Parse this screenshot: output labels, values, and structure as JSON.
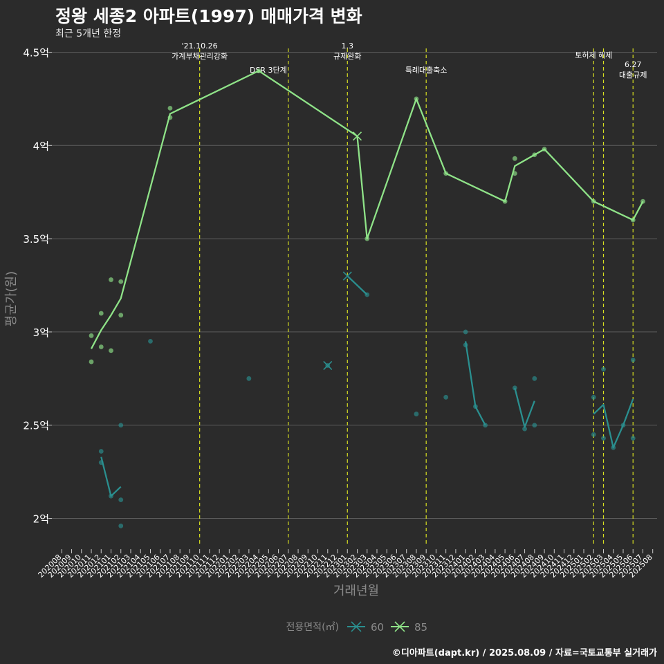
{
  "title": "정왕 세종2 아파트(1997) 매매가격 변화",
  "subtitle": "최근 5개년 한정",
  "caption": "©디아파트(dapt.kr) / 2025.08.09 / 자료=국토교통부 실거래가",
  "colors": {
    "background": "#2b2b2b",
    "grid": "#5c5c5c",
    "series_60": "#2a8f8f",
    "series_85": "#8fe388",
    "event_line": "#d8e020"
  },
  "chart_data": {
    "type": "line",
    "xlabel": "거래년월",
    "ylabel": "평균가(원)",
    "ylim": [
      1.85,
      4.55
    ],
    "xlim": [
      "2020-08",
      "2025-08"
    ],
    "y_ticks": [
      {
        "value": 2.0,
        "label": "2억"
      },
      {
        "value": 2.5,
        "label": "2.5억"
      },
      {
        "value": 3.0,
        "label": "3억"
      },
      {
        "value": 3.5,
        "label": "3.5억"
      },
      {
        "value": 4.0,
        "label": "4억"
      },
      {
        "value": 4.5,
        "label": "4.5억"
      }
    ],
    "x_ticks": [
      "202008",
      "202009",
      "202010",
      "202011",
      "202012",
      "202101",
      "202102",
      "202103",
      "202104",
      "202105",
      "202106",
      "202107",
      "202108",
      "202109",
      "202110",
      "202111",
      "202112",
      "202201",
      "202202",
      "202203",
      "202204",
      "202205",
      "202206",
      "202207",
      "202208",
      "202209",
      "202210",
      "202211",
      "202212",
      "202301",
      "202302",
      "202303",
      "202304",
      "202305",
      "202306",
      "202307",
      "202308",
      "202309",
      "202310",
      "202311",
      "202312",
      "202401",
      "202402",
      "202403",
      "202404",
      "202405",
      "202406",
      "202407",
      "202408",
      "202409",
      "202410",
      "202411",
      "202412",
      "202501",
      "202502",
      "202503",
      "202504",
      "202505",
      "202506",
      "202507",
      "202508"
    ],
    "legend": {
      "title": "전용면적(㎡)",
      "position": "bottom",
      "entries": [
        "60",
        "85"
      ]
    },
    "events": [
      {
        "x": "2021-10",
        "label": "'21.10.26\n가계부채관리강화",
        "label_y": 4.52,
        "align": "middle"
      },
      {
        "x": "2022-07",
        "label": "DSR 3단계",
        "label_y": 4.39,
        "align": "end"
      },
      {
        "x": "2023-01",
        "label": "1.3\n규제완화",
        "label_y": 4.52,
        "align": "middle"
      },
      {
        "x": "2023-09",
        "label": "특례대출축소",
        "label_y": 4.39,
        "align": "middle"
      },
      {
        "x": "2025-02",
        "label": "토허제 해제",
        "label_y": 4.47,
        "align": "middle"
      },
      {
        "x": "2025-03",
        "label": "",
        "label_y": 4.47,
        "align": "middle"
      },
      {
        "x": "2025-06",
        "label": "6.27\n대출규제",
        "label_y": 4.42,
        "align": "middle"
      }
    ],
    "series": [
      {
        "name": "60",
        "line_segments": [
          [
            [
              "2020-12",
              2.33
            ],
            [
              "2021-01",
              2.12
            ],
            [
              "2021-02",
              2.17
            ]
          ],
          [
            [
              "2023-01",
              3.3
            ],
            [
              "2023-03",
              3.2
            ]
          ],
          [
            [
              "2024-01",
              2.95
            ],
            [
              "2024-02",
              2.6
            ],
            [
              "2024-03",
              2.5
            ]
          ],
          [
            [
              "2024-06",
              2.7
            ],
            [
              "2024-07",
              2.49
            ],
            [
              "2024-08",
              2.63
            ]
          ],
          [
            [
              "2025-02",
              2.56
            ],
            [
              "2025-03",
              2.61
            ],
            [
              "2025-04",
              2.38
            ],
            [
              "2025-05",
              2.5
            ],
            [
              "2025-06",
              2.64
            ]
          ]
        ],
        "points": [
          [
            "2020-12",
            2.36
          ],
          [
            "2020-12",
            2.3
          ],
          [
            "2021-01",
            2.12
          ],
          [
            "2021-02",
            2.5
          ],
          [
            "2021-02",
            2.1
          ],
          [
            "2021-02",
            1.96
          ],
          [
            "2021-05",
            2.95
          ],
          [
            "2022-03",
            2.75
          ],
          [
            "2022-11",
            2.82
          ],
          [
            "2023-03",
            3.2
          ],
          [
            "2023-08",
            2.56
          ],
          [
            "2023-11",
            2.65
          ],
          [
            "2024-01",
            3.0
          ],
          [
            "2024-01",
            2.93
          ],
          [
            "2024-02",
            2.6
          ],
          [
            "2024-03",
            2.5
          ],
          [
            "2024-06",
            2.7
          ],
          [
            "2024-07",
            2.48
          ],
          [
            "2024-08",
            2.75
          ],
          [
            "2024-08",
            2.5
          ],
          [
            "2025-02",
            2.65
          ],
          [
            "2025-02",
            2.45
          ],
          [
            "2025-03",
            2.8
          ],
          [
            "2025-03",
            2.43
          ],
          [
            "2025-04",
            2.38
          ],
          [
            "2025-05",
            2.5
          ],
          [
            "2025-06",
            2.85
          ],
          [
            "2025-06",
            2.43
          ]
        ],
        "x_markers": [
          [
            "2022-11",
            2.82
          ],
          [
            "2023-01",
            3.3
          ]
        ]
      },
      {
        "name": "85",
        "line_segments": [
          [
            [
              "2020-11",
              2.91
            ],
            [
              "2020-12",
              3.01
            ],
            [
              "2021-01",
              3.09
            ],
            [
              "2021-02",
              3.18
            ],
            [
              "2021-07",
              4.17
            ],
            [
              "2022-04",
              4.4
            ],
            [
              "2023-02",
              4.05
            ],
            [
              "2023-03",
              3.5
            ],
            [
              "2023-08",
              4.25
            ],
            [
              "2023-11",
              3.85
            ],
            [
              "2024-05",
              3.7
            ],
            [
              "2024-06",
              3.89
            ],
            [
              "2024-08",
              3.95
            ],
            [
              "2024-09",
              3.98
            ],
            [
              "2025-02",
              3.7
            ],
            [
              "2025-06",
              3.6
            ],
            [
              "2025-07",
              3.7
            ]
          ]
        ],
        "points": [
          [
            "2020-11",
            2.98
          ],
          [
            "2020-11",
            2.84
          ],
          [
            "2020-12",
            3.1
          ],
          [
            "2020-12",
            2.92
          ],
          [
            "2021-01",
            3.28
          ],
          [
            "2021-01",
            2.9
          ],
          [
            "2021-02",
            3.27
          ],
          [
            "2021-02",
            3.09
          ],
          [
            "2021-07",
            4.2
          ],
          [
            "2021-07",
            4.15
          ],
          [
            "2022-04",
            4.4
          ],
          [
            "2023-03",
            3.5
          ],
          [
            "2023-08",
            4.25
          ],
          [
            "2023-11",
            3.85
          ],
          [
            "2024-05",
            3.7
          ],
          [
            "2024-06",
            3.93
          ],
          [
            "2024-06",
            3.85
          ],
          [
            "2024-08",
            3.95
          ],
          [
            "2024-09",
            3.98
          ],
          [
            "2025-02",
            3.7
          ],
          [
            "2025-06",
            3.6
          ],
          [
            "2025-07",
            3.7
          ]
        ],
        "x_markers": [
          [
            "2023-02",
            4.05
          ]
        ]
      }
    ]
  }
}
